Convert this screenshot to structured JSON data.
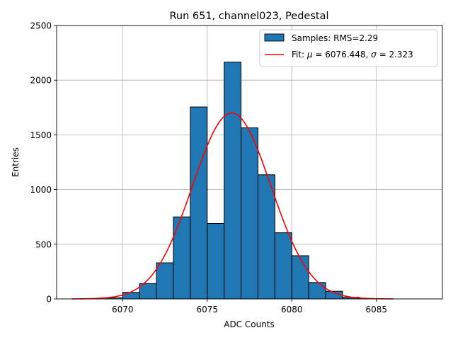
{
  "chart_data": {
    "type": "bar",
    "title": "Run 651, channel023, Pedestal",
    "xlabel": "ADC Counts",
    "ylabel": "Entries",
    "xlim": [
      6066.1,
      6088.9
    ],
    "ylim": [
      0,
      2500
    ],
    "grid": true,
    "legend_position": "top-right",
    "x_ticks": [
      6070,
      6075,
      6080,
      6085
    ],
    "y_ticks": [
      0,
      500,
      1000,
      1500,
      2000,
      2500
    ],
    "bin_width": 1,
    "bin_edges": [
      6067,
      6068,
      6069,
      6070,
      6071,
      6072,
      6073,
      6074,
      6075,
      6076,
      6077,
      6078,
      6079,
      6080,
      6081,
      6082,
      6083,
      6084,
      6085,
      6086,
      6087,
      6088
    ],
    "values": [
      0,
      0,
      10,
      60,
      140,
      330,
      750,
      1755,
      690,
      2165,
      1565,
      1135,
      605,
      395,
      150,
      70,
      15,
      3,
      0,
      0,
      0
    ],
    "bar_color": "#1f77b4",
    "bar_edge_color": "#000000",
    "series": [
      {
        "name": "Samples: RMS=2.29",
        "kind": "histogram",
        "color": "#1f77b4"
      },
      {
        "name": "Fit: μ = 6076.448, σ = 2.323",
        "kind": "gaussian",
        "color": "#ff0000",
        "mu": 6076.448,
        "sigma": 2.323,
        "amplitude": 1700,
        "x_range": [
          6067,
          6086
        ]
      }
    ],
    "legend": {
      "samples_label": "Samples: RMS=2.29",
      "fit_prefix": "Fit: ",
      "mu_symbol": "μ",
      "mu_value": " = 6076.448, ",
      "sigma_symbol": "σ",
      "sigma_value": " = 2.323"
    }
  }
}
